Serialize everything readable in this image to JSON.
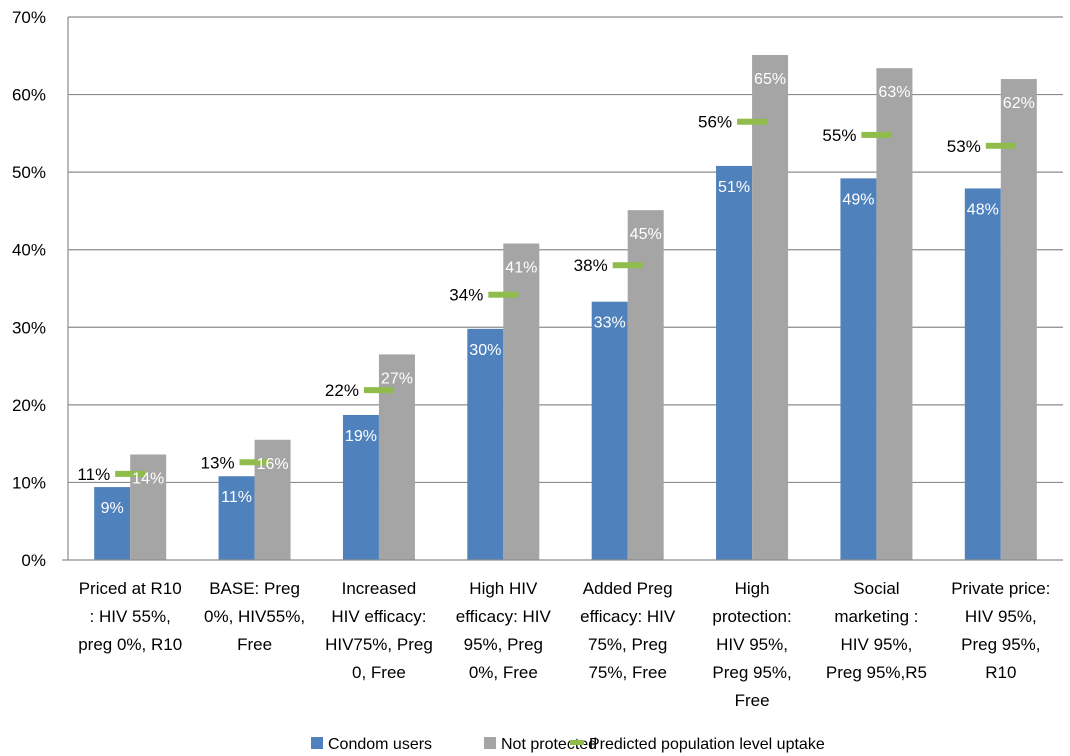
{
  "chart_data": {
    "type": "bar",
    "categories": [
      [
        "Priced at R10",
        ": HIV 55%,",
        "preg 0%, R10"
      ],
      [
        "BASE: Preg",
        "0%, HIV55%,",
        "Free"
      ],
      [
        "Increased",
        "HIV efficacy:",
        "HIV75%, Preg",
        "0, Free"
      ],
      [
        "High HIV",
        "efficacy: HIV",
        "95%, Preg",
        "0%, Free"
      ],
      [
        "Added Preg",
        "efficacy: HIV",
        "75%, Preg",
        "75%, Free"
      ],
      [
        "High",
        "protection:",
        "HIV 95%,",
        "Preg 95%,",
        "Free"
      ],
      [
        "Social",
        "marketing :",
        "HIV 95%,",
        "Preg 95%,R5"
      ],
      [
        "Private price:",
        "HIV 95%,",
        "Preg 95%,",
        "R10"
      ]
    ],
    "series": [
      {
        "name": "Condom users",
        "values": [
          9.4,
          10.8,
          18.7,
          29.8,
          33.3,
          50.8,
          49.2,
          47.9
        ],
        "labels": [
          "9%",
          "11%",
          "19%",
          "30%",
          "33%",
          "51%",
          "49%",
          "48%"
        ]
      },
      {
        "name": "Not protected",
        "values": [
          13.6,
          15.5,
          26.5,
          40.8,
          45.1,
          65.1,
          63.4,
          62.0
        ],
        "labels": [
          "14%",
          "16%",
          "27%",
          "41%",
          "45%",
          "65%",
          "63%",
          "62%"
        ]
      },
      {
        "name": "Predicted population level uptake",
        "values": [
          11.1,
          12.6,
          21.9,
          34.2,
          38.0,
          56.5,
          54.8,
          53.4
        ],
        "labels": [
          "11%",
          "13%",
          "22%",
          "34%",
          "38%",
          "56%",
          "55%",
          "53%"
        ]
      }
    ],
    "yticks": [
      "0%",
      "10%",
      "20%",
      "30%",
      "40%",
      "50%",
      "60%",
      "70%"
    ],
    "ylim": [
      0,
      70
    ],
    "grid": true,
    "legend_position": "bottom",
    "colors": {
      "condom_users": "#4f81bd",
      "not_protected": "#a5a5a5",
      "predicted": "#8fbc4b",
      "grid": "#8c8c8c",
      "axis": "#8c8c8c"
    }
  }
}
